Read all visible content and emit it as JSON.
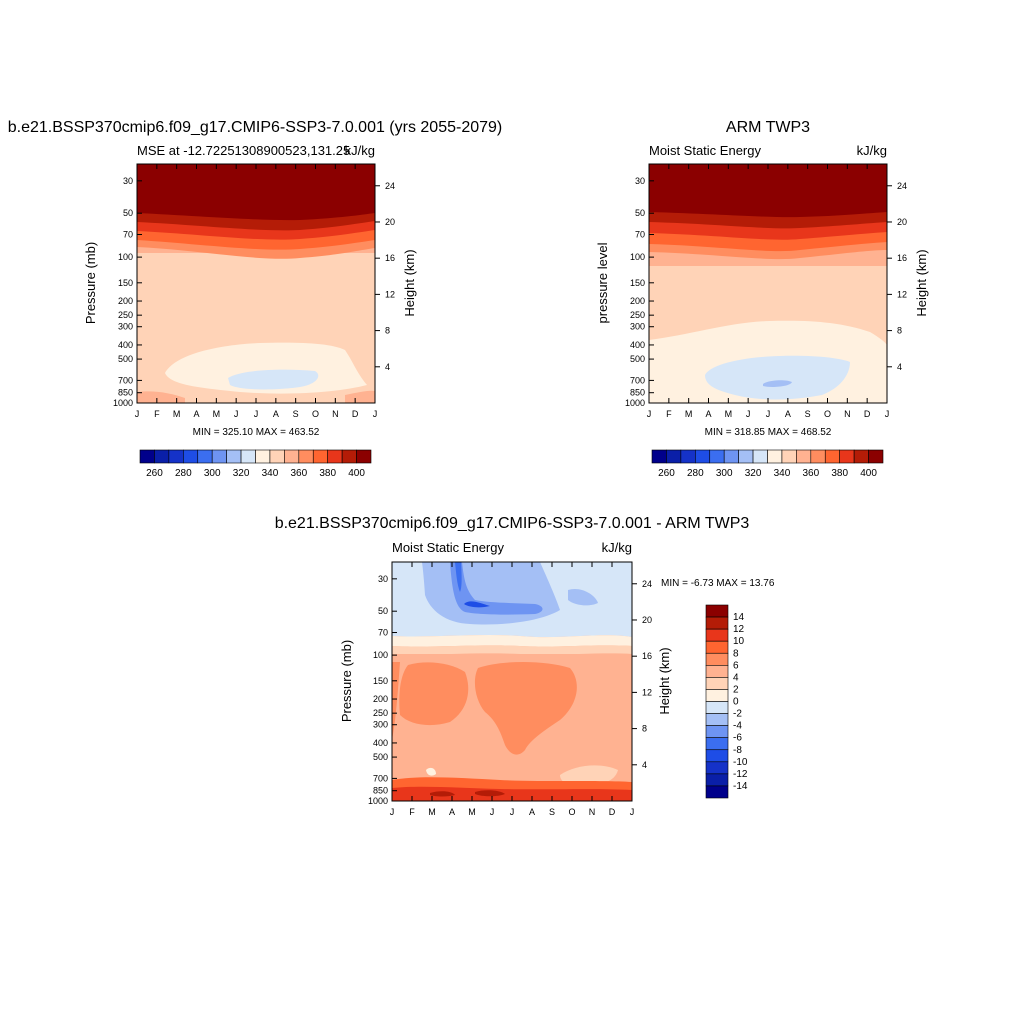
{
  "colors": {
    "blue_scale": [
      "#00008b",
      "#0a1fa8",
      "#1532c8",
      "#1e4de6",
      "#3b6ef0",
      "#6e94f2",
      "#a4bff5",
      "#d6e6f8"
    ],
    "red_scale": [
      "#fff1e0",
      "#ffd3b7",
      "#ffb291",
      "#ff8d5f",
      "#ff6530",
      "#e8361b",
      "#b41c07",
      "#8b0000"
    ],
    "plot_line": "#000000",
    "background": "#ffffff"
  },
  "months": [
    "J",
    "F",
    "M",
    "A",
    "M",
    "J",
    "J",
    "A",
    "S",
    "O",
    "N",
    "D",
    "J"
  ],
  "chart_data": [
    {
      "type": "heatmap",
      "title": "b.e21.BSSP370cmip6.f09_g17.CMIP6-SSP3-7.0.001 (yrs 2055-2079)",
      "left_string": "MSE at -12.72251308900523,131.25",
      "right_string": "kJ/kg",
      "ylabel": "Pressure (mb)",
      "ylabel_right": "Height (km)",
      "x_ticks": [
        "J",
        "F",
        "M",
        "A",
        "M",
        "J",
        "J",
        "A",
        "S",
        "O",
        "N",
        "D",
        "J"
      ],
      "y_ticks": [
        "30",
        "50",
        "70",
        "100",
        "150",
        "200",
        "250",
        "300",
        "400",
        "500",
        "700",
        "850",
        "1000"
      ],
      "y_ticks_right": [
        "24",
        "20",
        "16",
        "12",
        "8",
        "4"
      ],
      "stats": "MIN = 325.10 MAX = 463.52",
      "colorbar_labels": [
        "260",
        "280",
        "300",
        "320",
        "340",
        "360",
        "380",
        "400"
      ],
      "yscale": "log",
      "ylim": [
        1000,
        23
      ],
      "min": 325.1,
      "max": 463.52
    },
    {
      "type": "heatmap",
      "title": "ARM TWP3",
      "left_string": "Moist Static Energy",
      "right_string": "kJ/kg",
      "ylabel": "pressure level",
      "ylabel_right": "Height (km)",
      "x_ticks": [
        "J",
        "F",
        "M",
        "A",
        "M",
        "J",
        "J",
        "A",
        "S",
        "O",
        "N",
        "D",
        "J"
      ],
      "y_ticks": [
        "30",
        "50",
        "70",
        "100",
        "150",
        "200",
        "250",
        "300",
        "400",
        "500",
        "700",
        "850",
        "1000"
      ],
      "y_ticks_right": [
        "24",
        "20",
        "16",
        "12",
        "8",
        "4"
      ],
      "stats": "MIN = 318.85 MAX = 468.52",
      "colorbar_labels": [
        "260",
        "280",
        "300",
        "320",
        "340",
        "360",
        "380",
        "400"
      ],
      "yscale": "log",
      "ylim": [
        1000,
        23
      ],
      "min": 318.85,
      "max": 468.52
    },
    {
      "type": "heatmap",
      "title": "b.e21.BSSP370cmip6.f09_g17.CMIP6-SSP3-7.0.001 - ARM TWP3",
      "left_string": "Moist Static Energy",
      "right_string": "kJ/kg",
      "ylabel": "Pressure (mb)",
      "ylabel_right": "Height (km)",
      "x_ticks": [
        "J",
        "F",
        "M",
        "A",
        "M",
        "J",
        "J",
        "A",
        "S",
        "O",
        "N",
        "D",
        "J"
      ],
      "y_ticks": [
        "30",
        "50",
        "70",
        "100",
        "150",
        "200",
        "250",
        "300",
        "400",
        "500",
        "700",
        "850",
        "1000"
      ],
      "y_ticks_right": [
        "24",
        "20",
        "16",
        "12",
        "8",
        "4"
      ],
      "stats": "MIN =  -6.73 MAX =  13.76",
      "colorbar_labels": [
        "14",
        "12",
        "10",
        "8",
        "6",
        "4",
        "2",
        "0",
        "-2",
        "-4",
        "-6",
        "-8",
        "-10",
        "-12",
        "-14"
      ],
      "yscale": "log",
      "ylim": [
        1000,
        23
      ],
      "min": -6.73,
      "max": 13.76
    }
  ]
}
